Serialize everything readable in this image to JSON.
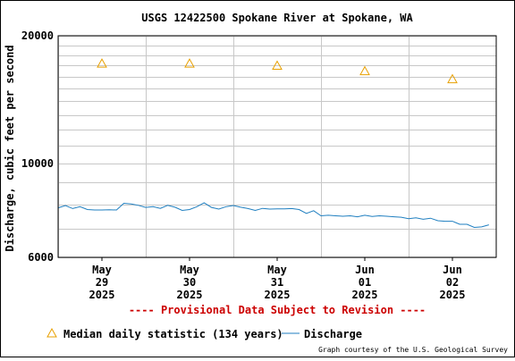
{
  "chart_data": {
    "type": "line",
    "title": "USGS 12422500 Spokane River at Spokane, WA",
    "ylabel": "Discharge, cubic feet per second",
    "xlabel": "",
    "y_scale": "log",
    "ylim": [
      6000,
      20000
    ],
    "y_tick_labels": [
      {
        "value": 6000,
        "label": "6000"
      },
      {
        "value": 10000,
        "label": "10000"
      },
      {
        "value": 20000,
        "label": "20000"
      }
    ],
    "y_minor_ticks": [
      7000,
      8000,
      9000,
      11000,
      12000,
      13000,
      14000,
      15000,
      16000,
      17000,
      18000,
      19000
    ],
    "xlim_days": [
      -0.5,
      4.5
    ],
    "x_ticks": [
      {
        "day": 0,
        "month": "May",
        "date": "29",
        "year": "2025"
      },
      {
        "day": 1,
        "month": "May",
        "date": "30",
        "year": "2025"
      },
      {
        "day": 2,
        "month": "May",
        "date": "31",
        "year": "2025"
      },
      {
        "day": 3,
        "month": "Jun",
        "date": "01",
        "year": "2025"
      },
      {
        "day": 4,
        "month": "Jun",
        "date": "02",
        "year": "2025"
      }
    ],
    "grid": true,
    "series": [
      {
        "name": "Median daily statistic (134 years)",
        "kind": "marker-triangle",
        "color": "#e8a000",
        "x": [
          "2025-05-29",
          "2025-05-30",
          "2025-05-31",
          "2025-06-01",
          "2025-06-02"
        ],
        "y": [
          17200,
          17200,
          17000,
          16500,
          15800
        ]
      },
      {
        "name": "Discharge",
        "kind": "line",
        "color": "#1f7fc0",
        "x": [
          "2025-05-28 12:00",
          "2025-05-28 14:00",
          "2025-05-28 16:00",
          "2025-05-28 18:00",
          "2025-05-28 20:00",
          "2025-05-28 22:00",
          "2025-05-29 00:00",
          "2025-05-29 02:00",
          "2025-05-29 04:00",
          "2025-05-29 06:00",
          "2025-05-29 08:00",
          "2025-05-29 10:00",
          "2025-05-29 12:00",
          "2025-05-29 14:00",
          "2025-05-29 16:00",
          "2025-05-29 18:00",
          "2025-05-29 20:00",
          "2025-05-29 22:00",
          "2025-05-30 00:00",
          "2025-05-30 02:00",
          "2025-05-30 04:00",
          "2025-05-30 06:00",
          "2025-05-30 08:00",
          "2025-05-30 10:00",
          "2025-05-30 12:00",
          "2025-05-30 14:00",
          "2025-05-30 16:00",
          "2025-05-30 18:00",
          "2025-05-30 20:00",
          "2025-05-30 22:00",
          "2025-05-31 00:00",
          "2025-05-31 02:00",
          "2025-05-31 04:00",
          "2025-05-31 06:00",
          "2025-05-31 08:00",
          "2025-05-31 10:00",
          "2025-05-31 12:00",
          "2025-05-31 14:00",
          "2025-05-31 16:00",
          "2025-05-31 18:00",
          "2025-05-31 20:00",
          "2025-05-31 22:00",
          "2025-06-01 00:00",
          "2025-06-01 02:00",
          "2025-06-01 04:00",
          "2025-06-01 06:00",
          "2025-06-01 08:00",
          "2025-06-01 10:00",
          "2025-06-01 12:00",
          "2025-06-01 14:00",
          "2025-06-01 16:00",
          "2025-06-01 18:00",
          "2025-06-01 20:00",
          "2025-06-01 22:00",
          "2025-06-02 00:00",
          "2025-06-02 02:00",
          "2025-06-02 04:00",
          "2025-06-02 06:00",
          "2025-06-02 08:00",
          "2025-06-02 10:00"
        ],
        "y": [
          7850,
          7950,
          7820,
          7900,
          7780,
          7760,
          7760,
          7770,
          7760,
          8050,
          8020,
          7960,
          7870,
          7900,
          7830,
          7960,
          7880,
          7740,
          7780,
          7900,
          8070,
          7870,
          7800,
          7900,
          7950,
          7880,
          7820,
          7740,
          7830,
          7800,
          7810,
          7810,
          7820,
          7780,
          7620,
          7730,
          7520,
          7540,
          7520,
          7500,
          7520,
          7480,
          7540,
          7490,
          7520,
          7500,
          7480,
          7460,
          7400,
          7440,
          7380,
          7420,
          7320,
          7300,
          7300,
          7180,
          7180,
          7060,
          7080,
          7160
        ]
      }
    ],
    "legend_position": "bottom-left"
  },
  "notice": "---- Provisional Data Subject to Revision ----",
  "legend": {
    "median_label": "Median daily statistic (134 years)",
    "discharge_label": "Discharge"
  },
  "credit": "Graph courtesy of the U.S. Geological Survey",
  "colors": {
    "median": "#e8a000",
    "discharge": "#1f7fc0",
    "notice": "#cc0000",
    "grid": "#c8c8c8"
  }
}
